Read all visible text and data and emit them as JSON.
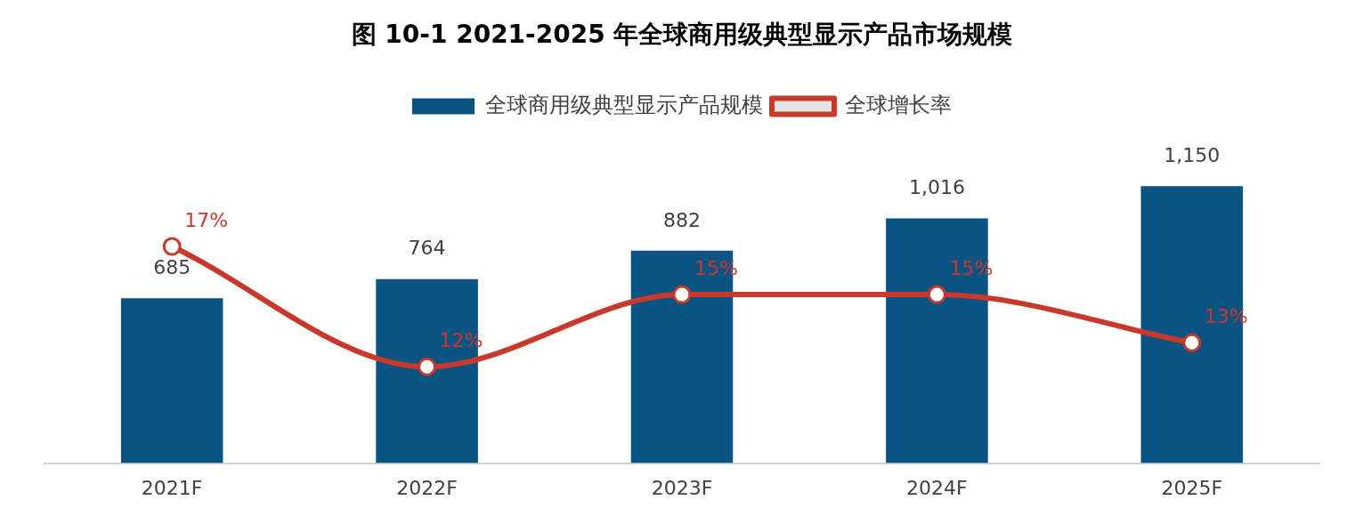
{
  "chart_data": {
    "type": "bar",
    "title": "图 10-1 2021-2025 年全球商用级典型显示产品市场规模",
    "categories": [
      "2021F",
      "2022F",
      "2023F",
      "2024F",
      "2025F"
    ],
    "series": [
      {
        "name": "全球商用级典型显示产品规模",
        "color": "#0b5383",
        "values": [
          685,
          764,
          882,
          1016,
          1150
        ],
        "value_labels": [
          "685",
          "764",
          "882",
          "1,016",
          "1,150"
        ]
      },
      {
        "name": "全球增长率",
        "type": "line",
        "axis": "y2",
        "color": "#c8392b",
        "values": [
          17,
          12,
          15,
          15,
          13
        ],
        "value_labels": [
          "17%",
          "12%",
          "15%",
          "15%",
          "13%"
        ],
        "marker": "circle",
        "line_style": "solid"
      }
    ],
    "legend": "top",
    "grid": false,
    "tick_labels": "x"
  }
}
